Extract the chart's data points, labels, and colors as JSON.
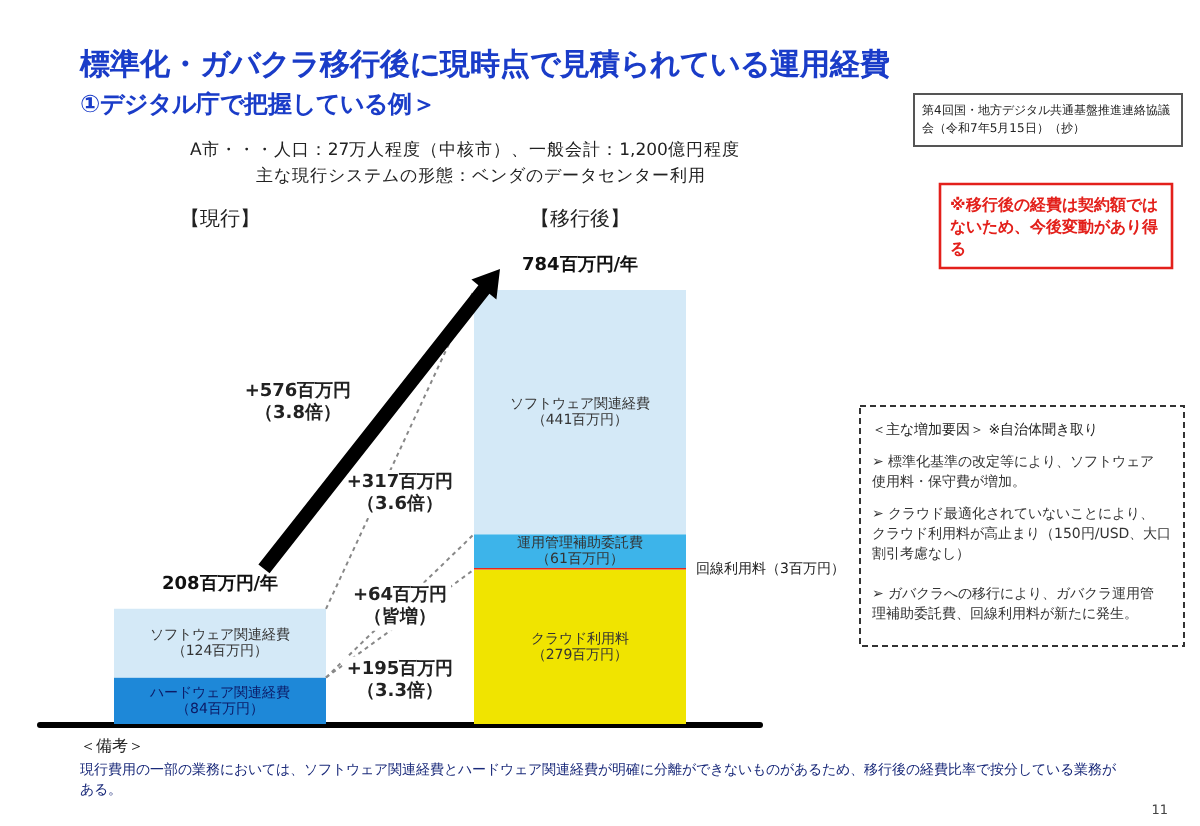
{
  "chart_data": {
    "type": "bar",
    "stacked": true,
    "title": "標準化・ガバクラ移行後に現時点で見積られている運用経費",
    "subtitle": "①デジタル庁で把握している例＞",
    "categories": [
      "【現行】",
      "【移行後】"
    ],
    "tick_labels": "x",
    "series": [
      {
        "name": "ハードウェア関連経費",
        "color": "#1e88d8",
        "values": [
          84,
          null
        ],
        "value_labels": [
          "（84百万円）",
          null
        ]
      },
      {
        "name": "クラウド利用料",
        "color": "#f0e400",
        "values": [
          null,
          279
        ],
        "value_labels": [
          null,
          "（279百万円）"
        ]
      },
      {
        "name": "回線利用料",
        "color": "#e8261c",
        "values": [
          null,
          3
        ],
        "value_labels": [
          null,
          "（3百万円）"
        ]
      },
      {
        "name": "運用管理補助委託費",
        "color": "#3db4ea",
        "values": [
          null,
          61
        ],
        "value_labels": [
          null,
          "（61百万円）"
        ]
      },
      {
        "name": "ソフトウェア関連経費",
        "color": "#d4e9f7",
        "values": [
          124,
          441
        ],
        "value_labels": [
          "（124百万円）",
          "（441百万円）"
        ]
      }
    ],
    "totals": [
      "208百万円/年",
      "784百万円/年"
    ],
    "annotations": [
      "A市・・・人口：27万人程度（中核市）、一般会計：1,200億円程度",
      "主な現行システムの形態：ベンダのデータセンター利用",
      "第4回国・地方デジタル共通基盤推進連絡協議会（令和7年5月15日）（抄）",
      "※移行後の経費は契約額ではないため、今後変動があり得る",
      "+576百万円（3.8倍）",
      "+317百万円（3.6倍）",
      "+64百万円（皆増）",
      "+195百万円（3.3倍）",
      "＜主な増加要因＞ ※自治体聞き取り",
      "➢ 標準化基準の改定等により、ソフトウェア使用料・保守費が増加。",
      "➢ クラウド最適化されていないことにより、クラウド利用料が高止まり（150円/USD、大口割引考慮なし）",
      "➢ ガバクラへの移行により、ガバクラ運用管理補助委託費、回線利用料が新たに発生。",
      "＜備考＞",
      "現行費用の一部の業務においては、ソフトウェア関連経費とハードウェア関連経費が明確に分離ができないものがあるため、移行後の経費比率で按分している業務がある。",
      "11"
    ]
  }
}
